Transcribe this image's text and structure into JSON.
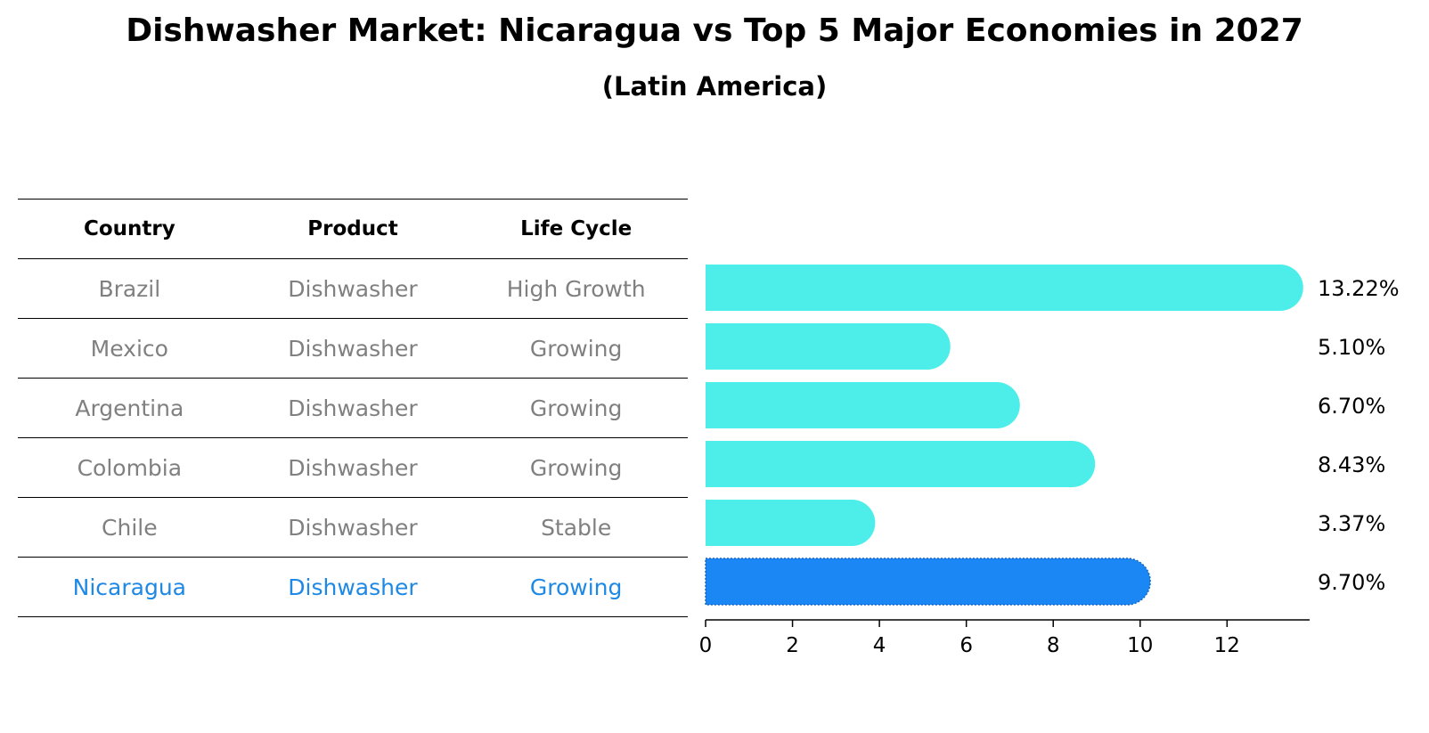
{
  "title": "Dishwasher Market: Nicaragua vs Top 5 Major Economies in 2027",
  "subtitle": "(Latin America)",
  "table": {
    "headers": [
      "Country",
      "Product",
      "Life Cycle"
    ],
    "rows": [
      {
        "country": "Brazil",
        "product": "Dishwasher",
        "life_cycle": "High Growth"
      },
      {
        "country": "Mexico",
        "product": "Dishwasher",
        "life_cycle": "Growing"
      },
      {
        "country": "Argentina",
        "product": "Dishwasher",
        "life_cycle": "Growing"
      },
      {
        "country": "Colombia",
        "product": "Dishwasher",
        "life_cycle": "Growing"
      },
      {
        "country": "Chile",
        "product": "Dishwasher",
        "life_cycle": "Stable"
      },
      {
        "country": "Nicaragua",
        "product": "Dishwasher",
        "life_cycle": "Growing"
      }
    ],
    "highlight_color": "#1e88e5",
    "text_color": "#808080"
  },
  "chart_data": {
    "type": "bar",
    "orientation": "horizontal",
    "categories": [
      "Brazil",
      "Mexico",
      "Argentina",
      "Colombia",
      "Chile",
      "Nicaragua"
    ],
    "values": [
      13.22,
      5.1,
      6.7,
      8.43,
      3.37,
      9.7
    ],
    "value_labels": [
      "13.22%",
      "5.10%",
      "6.70%",
      "8.43%",
      "3.37%",
      "9.70%"
    ],
    "highlight_category": "Nicaragua",
    "bar_color": "#4deeea",
    "highlight_color": "#1a87f5",
    "xlim": [
      0,
      13.9
    ],
    "xticks": [
      0,
      2,
      4,
      6,
      8,
      10,
      12
    ],
    "xlabel": "",
    "ylabel": "",
    "grid": false
  }
}
